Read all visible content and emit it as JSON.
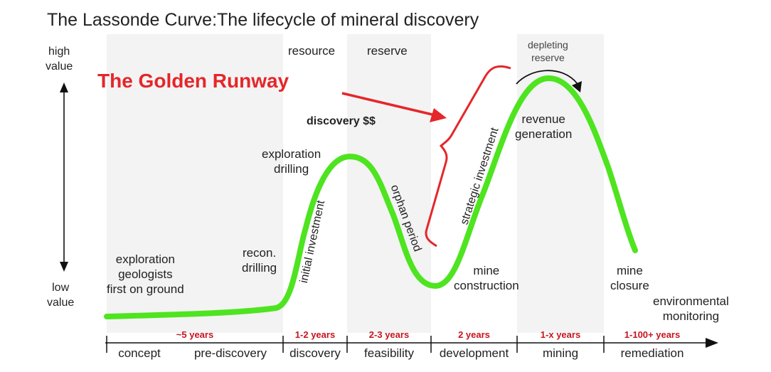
{
  "title": "The Lassonde Curve:The lifecycle of mineral discovery",
  "annotation": {
    "text": "The Golden Runway",
    "color": "#e5262a"
  },
  "y_axis": {
    "top_label": "high\nvalue",
    "bottom_label": "low\nvalue"
  },
  "band_labels": {
    "resource": "resource",
    "reserve": "reserve",
    "depleting_reserve": "depleting\nreserve"
  },
  "curve_labels": {
    "exploration_geologists": "exploration\ngeologists\nfirst on ground",
    "recon_drilling": "recon.\ndrilling",
    "exploration_drilling": "exploration\ndrilling",
    "discovery_money": "discovery $$",
    "initial_investment": "initial investment",
    "orphan_period": "orphan period",
    "strategic_investment": "strategic investment",
    "mine_construction": "mine\nconstruction",
    "revenue_generation": "revenue\ngeneration",
    "mine_closure": "mine\nclosure",
    "environmental_monitoring": "environmental\nmonitoring"
  },
  "timeline": {
    "durations": [
      "~5 years",
      "1-2 years",
      "2-3 years",
      "2 years",
      "1-x years",
      "1-100+ years"
    ],
    "phases": [
      "concept",
      "pre-discovery",
      "discovery",
      "feasibility",
      "development",
      "mining",
      "remediation"
    ]
  },
  "colors": {
    "curve": "#4ee41f",
    "band": "#f3f3f3",
    "duration": "#c8141e",
    "annotation": "#e5262a"
  }
}
